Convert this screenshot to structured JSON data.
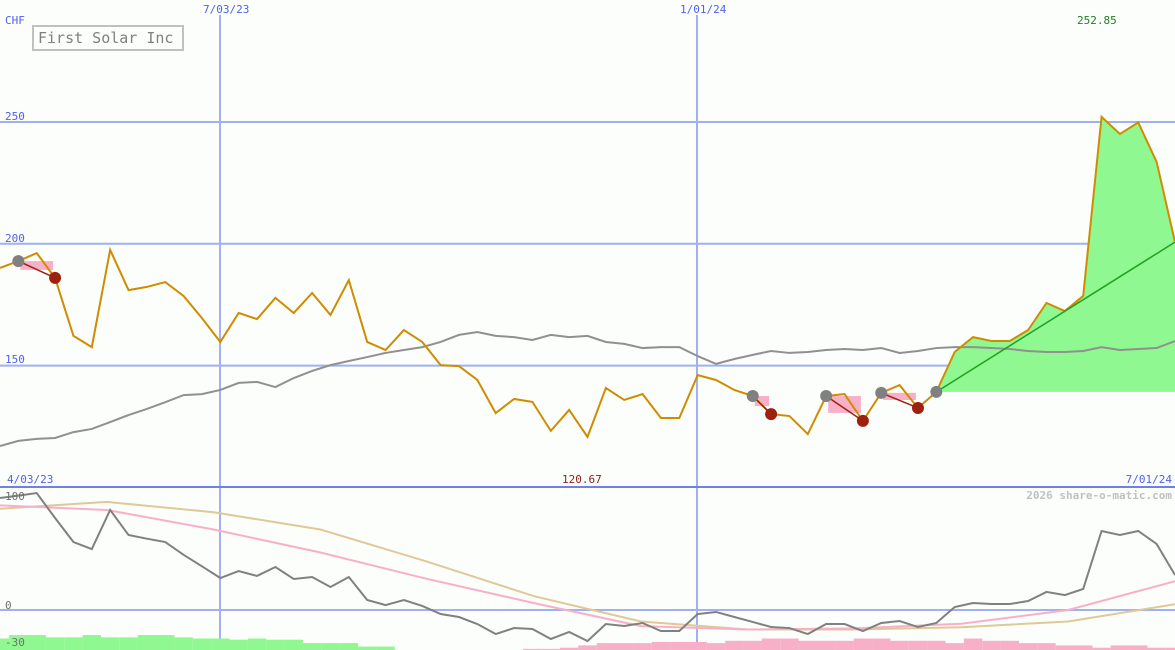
{
  "chart_data": [
    {
      "type": "line",
      "title": "First Solar Inc",
      "ylabel": "CHF",
      "x_start": "4/03/23",
      "x_end": "7/01/24",
      "x_tick_labels": [
        "7/03/23",
        "1/01/24"
      ],
      "y_ticks": [
        150,
        200,
        250
      ],
      "ylim": [
        100,
        300
      ],
      "grid": true,
      "high_label": "252.85",
      "low_label": "120.67",
      "series": [
        {
          "values": [
            190.1,
            192.9,
            196.2,
            186.0,
            162.2,
            157.6,
            197.5,
            181.0,
            182.3,
            184.3,
            178.6,
            169.5,
            159.7,
            171.6,
            169.1,
            177.8,
            171.6,
            179.8,
            170.8,
            185.1,
            159.7,
            156.4,
            164.6,
            159.7,
            150.2,
            149.8,
            144.1,
            130.5,
            136.3,
            135.1,
            123.2,
            131.8,
            120.7,
            140.8,
            135.9,
            138.3,
            128.5,
            128.5,
            146.1,
            144.1,
            140.0,
            137.5,
            130.1,
            129.3,
            121.9,
            137.5,
            138.3,
            127.3,
            138.8,
            142.0,
            132.6,
            139.2,
            155.6,
            161.7,
            160.1,
            160.1,
            164.6,
            175.7,
            172.4,
            178.6,
            252.1,
            245.1,
            249.8,
            233.6,
            200.7
          ]
        },
        {
          "values": [
            117.0,
            119.1,
            119.9,
            120.3,
            122.7,
            124.0,
            126.8,
            129.7,
            132.2,
            135.0,
            137.9,
            138.3,
            140.0,
            142.9,
            143.3,
            141.2,
            144.9,
            147.8,
            150.2,
            151.9,
            153.5,
            155.2,
            156.4,
            157.6,
            159.7,
            162.6,
            163.8,
            162.2,
            161.7,
            160.5,
            162.6,
            161.7,
            162.2,
            159.7,
            158.9,
            157.2,
            157.6,
            157.6,
            153.9,
            150.7,
            152.7,
            154.4,
            156.0,
            155.2,
            155.6,
            156.4,
            156.8,
            156.4,
            157.2,
            155.2,
            156.0,
            157.2,
            157.6,
            157.6,
            157.2,
            156.8,
            156.0,
            155.6,
            155.6,
            156.0,
            157.6,
            156.4,
            156.8,
            157.2,
            160.1
          ]
        }
      ],
      "signal_pairs": [
        [
          1,
          3
        ],
        [
          41,
          42
        ],
        [
          45,
          47
        ],
        [
          48,
          50
        ]
      ],
      "trend_start_index": 51,
      "colors": {
        "price": "#d08c00",
        "average": "#909090",
        "fill_up": "#90f890",
        "fill_down": "#f8b0c8",
        "trend": "#20a020",
        "marker_start": "#808080",
        "marker_end": "#a02010"
      }
    },
    {
      "type": "line",
      "y_ticks": [
        100,
        0,
        -30
      ],
      "ylim": [
        -35,
        105
      ],
      "series": [
        {
          "values": [
            97.4,
            99.5,
            101.7,
            80,
            59.1,
            53.0,
            87.0,
            65.2,
            62,
            59.1,
            48,
            38,
            27.8,
            33.9,
            29.6,
            37.4,
            27.0,
            28.7,
            20.0,
            28.7,
            8.7,
            4.3,
            8.7,
            3.5,
            -3.5,
            -6.1,
            -12.2,
            -20.9,
            -15.7,
            -16.5,
            -25.2,
            -19.1,
            -27.0,
            -12.2,
            -13.9,
            -11.3,
            -18.3,
            -18.3,
            -3.5,
            -1.7,
            -6.1,
            -10.4,
            -14.8,
            -15.7,
            -20.9,
            -12.2,
            -12.2,
            -18.3,
            -11.3,
            -9.6,
            -14.8,
            -11.3,
            2.6,
            6.1,
            5.2,
            5.2,
            7.8,
            15.7,
            13.0,
            18.3,
            68.7,
            65.2,
            68.7,
            57.4,
            30.4
          ]
        },
        {
          "values": [
            91,
            87,
            70,
            50,
            27,
            6,
            -14,
            -17,
            -16,
            -12,
            0,
            25
          ]
        },
        {
          "values": [
            88,
            94,
            85,
            70,
            42,
            12,
            -10,
            -17,
            -17,
            -15,
            -10,
            5
          ]
        }
      ],
      "histogram": [
        10,
        13,
        13,
        11,
        11,
        13,
        11,
        11,
        13,
        13,
        11,
        10,
        10,
        9,
        10,
        9,
        9,
        6,
        6,
        6,
        3,
        3,
        0,
        0,
        0,
        0,
        0,
        0,
        0,
        -1,
        -1,
        -2,
        -4,
        -6,
        -6,
        -6,
        -7,
        -7,
        -7,
        -6,
        -8,
        -8,
        -10,
        -10,
        -8,
        -8,
        -8,
        -10,
        -10,
        -8,
        -8,
        -8,
        -6,
        -10,
        -8,
        -8,
        -6,
        -6,
        -4,
        -4,
        -2,
        -4,
        -4,
        -2,
        -2
      ],
      "colors": {
        "osc": "#808080",
        "pink": "#f8b0c8",
        "tan": "#e0c898",
        "hist_up": "#90f890",
        "hist_down": "#f8b0c8"
      }
    }
  ],
  "watermark": "2026 share-o-matic.com"
}
